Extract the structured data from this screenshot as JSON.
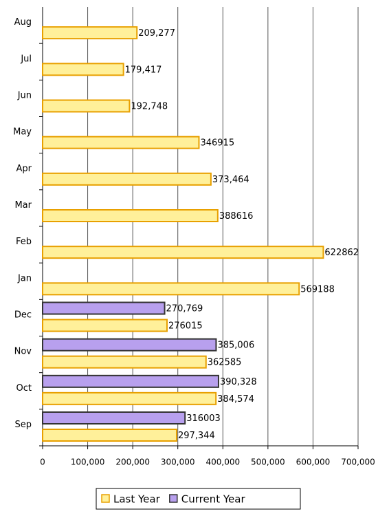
{
  "chart_data": {
    "type": "hbar",
    "categories": [
      "Sep",
      "Oct",
      "Nov",
      "Dec",
      "Jan",
      "Feb",
      "Mar",
      "Apr",
      "May",
      "Jun",
      "Jul",
      "Aug"
    ],
    "series": [
      {
        "name": "Last Year",
        "color": "#fff09a",
        "stroke": "#e8a000",
        "values": [
          297344,
          384574,
          362585,
          276015,
          569188,
          622862,
          388616,
          373464,
          346915,
          192748,
          179417,
          209277
        ],
        "value_labels": [
          "297,344",
          "384,574",
          "362585",
          "276015",
          "569188",
          "622862",
          "388616",
          "373,464",
          "346915",
          "192,748",
          "179,417",
          "209,277"
        ]
      },
      {
        "name": "Current Year",
        "color": "#b8a0ee",
        "stroke": "#333333",
        "values": [
          316003,
          390328,
          385006,
          270769,
          null,
          null,
          null,
          null,
          null,
          null,
          null,
          null
        ],
        "value_labels": [
          "316003",
          "390,328",
          "385,006",
          "270,769",
          null,
          null,
          null,
          null,
          null,
          null,
          null,
          null
        ]
      }
    ],
    "xlim": [
      0,
      700000
    ],
    "xticks": [
      0,
      {
        "value": 100000,
        "label": "100,000"
      },
      {
        "value": 200000,
        "label": "200,000"
      },
      {
        "value": 300000,
        "label": "300,000"
      },
      {
        "value": 400000,
        "label": "400,000"
      },
      {
        "value": 500000,
        "label": "500,000"
      },
      {
        "value": 600000,
        "label": "600,000"
      },
      {
        "value": 700000,
        "label": "700,000"
      }
    ],
    "grid": true,
    "legend": "bottom"
  }
}
